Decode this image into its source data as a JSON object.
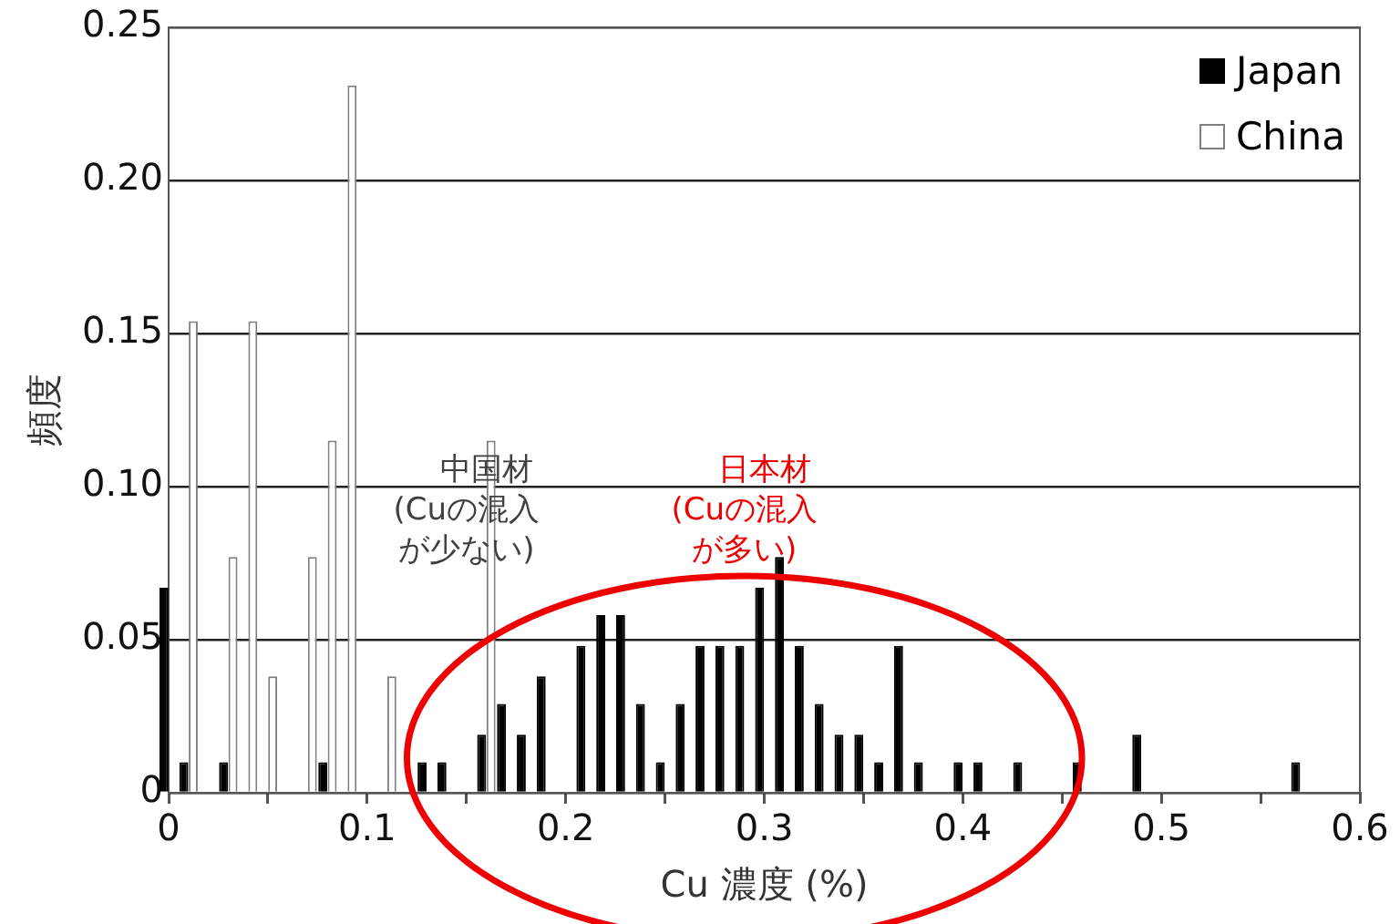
{
  "chart_data": {
    "type": "bar",
    "xlabel": "Cu 濃度 (%)",
    "ylabel": "頻度",
    "series": [
      {
        "name": "Japan",
        "color": "#000000",
        "x": [
          0,
          0.01,
          0.03,
          0.08,
          0.13,
          0.14,
          0.16,
          0.17,
          0.18,
          0.19,
          0.21,
          0.22,
          0.23,
          0.24,
          0.25,
          0.26,
          0.27,
          0.28,
          0.29,
          0.3,
          0.31,
          0.32,
          0.33,
          0.34,
          0.35,
          0.36,
          0.37,
          0.38,
          0.4,
          0.41,
          0.43,
          0.46,
          0.49,
          0.57
        ],
        "values": [
          0.067,
          0.01,
          0.01,
          0.01,
          0.01,
          0.01,
          0.019,
          0.029,
          0.019,
          0.038,
          0.048,
          0.058,
          0.058,
          0.029,
          0.01,
          0.029,
          0.048,
          0.048,
          0.048,
          0.067,
          0.077,
          0.048,
          0.029,
          0.019,
          0.019,
          0.01,
          0.048,
          0.01,
          0.01,
          0.01,
          0.01,
          0.01,
          0.019,
          0.01
        ]
      },
      {
        "name": "China",
        "color": "#808080",
        "x": [
          0.01,
          0.03,
          0.04,
          0.05,
          0.07,
          0.08,
          0.09,
          0.11,
          0.16
        ],
        "values": [
          0.154,
          0.077,
          0.154,
          0.038,
          0.077,
          0.115,
          0.231,
          0.038,
          0.115
        ]
      }
    ],
    "xlim": [
      0,
      0.6
    ],
    "xticks": [
      0,
      {
        "value": 0.05,
        "label": null
      },
      0.1,
      {
        "value": 0.15,
        "label": null
      },
      0.2,
      {
        "value": 0.25,
        "label": null
      },
      0.3,
      {
        "value": 0.35,
        "label": null
      },
      0.4,
      {
        "value": 0.45,
        "label": null
      },
      0.5,
      {
        "value": 0.55,
        "label": null
      },
      0.6
    ],
    "ylim": [
      0,
      0.25
    ],
    "yticks": [
      0,
      0.05,
      {
        "value": 0.1,
        "label": "0.10"
      },
      0.15,
      {
        "value": 0.2,
        "label": "0.20"
      },
      0.25
    ],
    "grid": "y",
    "legend": "top right",
    "annotations": [
      "中国材(Cuの混入が少ない)",
      "日本材(Cuの混入が多い)"
    ]
  }
}
